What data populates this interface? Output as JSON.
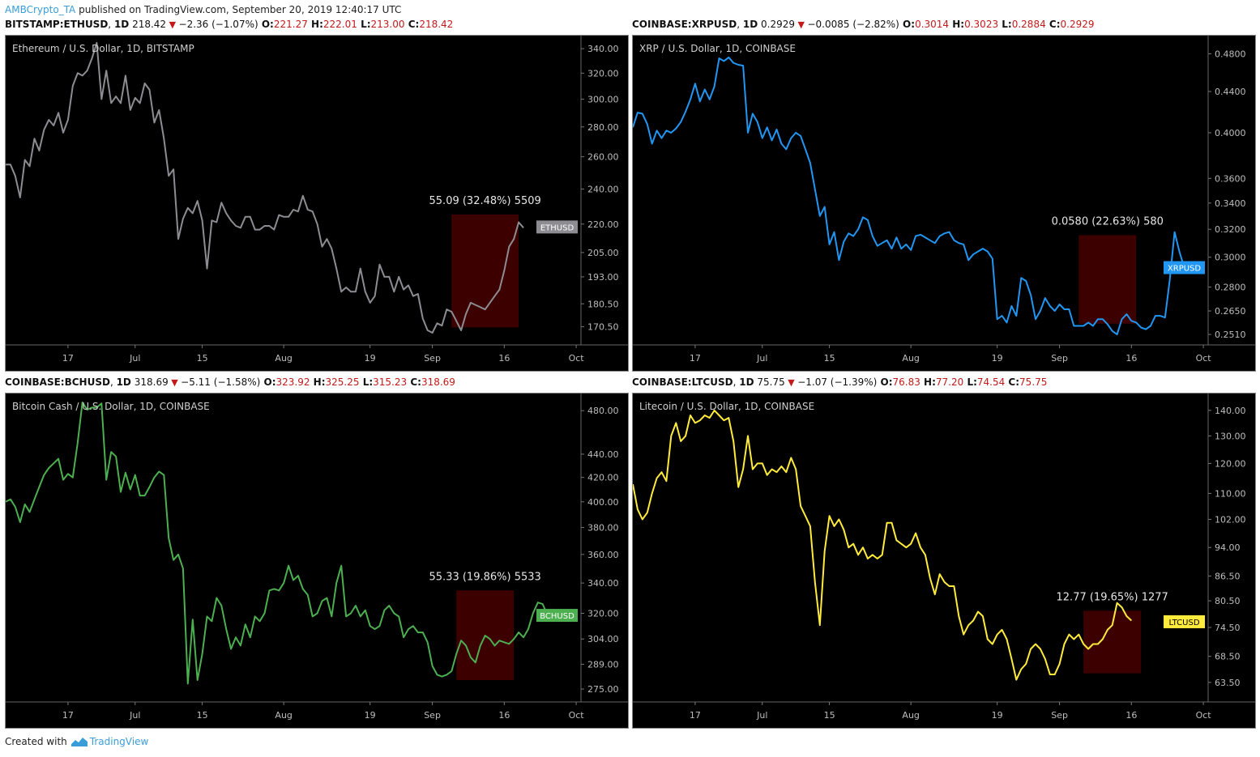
{
  "header": {
    "author": "AMBCrypto_TA",
    "published_text": "published on TradingView.com, September 20, 2019 12:40:17 UTC"
  },
  "footer": {
    "created_with": "Created with",
    "brand": "TradingView"
  },
  "colors": {
    "box": "#3d0000",
    "panel_bg": "#000000",
    "red": "#c21a1a"
  },
  "panels": [
    {
      "symbol": "BITSTAMP:ETHUSD",
      "interval": "1D",
      "last": "218.42",
      "change": "−2.36 (−1.07%)",
      "ohlc": {
        "o": "221.27",
        "h": "222.01",
        "l": "213.00",
        "c": "218.42"
      },
      "title": "Ethereum / U.S. Dollar, 1D, BITSTAMP",
      "ticker": "ETHUSD",
      "measure_label": "55.09 (32.48%) 5509"
    },
    {
      "symbol": "COINBASE:XRPUSD",
      "interval": "1D",
      "last": "0.2929",
      "change": "−0.0085 (−2.82%)",
      "ohlc": {
        "o": "0.3014",
        "h": "0.3023",
        "l": "0.2884",
        "c": "0.2929"
      },
      "title": "XRP / U.S. Dollar, 1D, COINBASE",
      "ticker": "XRPUSD",
      "measure_label": "0.0580 (22.63%) 580"
    },
    {
      "symbol": "COINBASE:BCHUSD",
      "interval": "1D",
      "last": "318.69",
      "change": "−5.11 (−1.58%)",
      "ohlc": {
        "o": "323.92",
        "h": "325.25",
        "l": "315.23",
        "c": "318.69"
      },
      "title": "Bitcoin Cash / U.S. Dollar, 1D, COINBASE",
      "ticker": "BCHUSD",
      "measure_label": "55.33 (19.86%) 5533"
    },
    {
      "symbol": "COINBASE:LTCUSD",
      "interval": "1D",
      "last": "75.75",
      "change": "−1.07 (−1.39%)",
      "ohlc": {
        "o": "76.83",
        "h": "77.20",
        "l": "74.54",
        "c": "75.75"
      },
      "title": "Litecoin / U.S. Dollar, 1D, COINBASE",
      "ticker": "LTCUSD",
      "measure_label": "12.77 (19.65%) 1277"
    }
  ],
  "chart_data": [
    {
      "type": "line",
      "color": "#8c8c92",
      "ticker": "ETHUSD",
      "last_value": 218.42,
      "x_ticks": [
        {
          "label": "17",
          "day": 13
        },
        {
          "label": "Jul",
          "day": 27
        },
        {
          "label": "15",
          "day": 41
        },
        {
          "label": "Aug",
          "day": 58
        },
        {
          "label": "19",
          "day": 76
        },
        {
          "label": "Sep",
          "day": 89
        },
        {
          "label": "16",
          "day": 104
        },
        {
          "label": "Oct",
          "day": 119
        }
      ],
      "y_ticks": [
        {
          "label": "340.00",
          "value": 340
        },
        {
          "label": "320.00",
          "value": 320
        },
        {
          "label": "300.00",
          "value": 300
        },
        {
          "label": "280.00",
          "value": 280
        },
        {
          "label": "260.00",
          "value": 260
        },
        {
          "label": "240.00",
          "value": 240
        },
        {
          "label": "220.00",
          "value": 220
        },
        {
          "label": "205.00",
          "value": 205
        },
        {
          "label": "193.00",
          "value": 193
        },
        {
          "label": "180.50",
          "value": 180.5
        },
        {
          "label": "170.50",
          "value": 170.5
        }
      ],
      "ylim": [
        163,
        347
      ],
      "xlim": [
        0,
        120
      ],
      "log_scale": true,
      "measure_box": {
        "x_start": 93,
        "x_end": 107,
        "y_low": 170.2,
        "y_high": 225.3
      },
      "values": [
        255,
        255,
        248,
        235,
        258,
        254,
        272,
        264,
        278,
        285,
        281,
        290,
        276,
        285,
        310,
        320,
        318,
        322,
        332,
        345,
        300,
        322,
        297,
        302,
        297,
        318,
        292,
        301,
        297,
        312,
        307,
        283,
        292,
        272,
        248,
        252,
        212,
        223,
        229,
        226,
        233,
        222,
        197,
        222,
        221,
        232,
        226,
        222,
        219,
        218,
        224,
        224,
        217,
        217,
        219,
        219,
        217,
        225,
        224,
        224,
        228,
        227,
        236,
        228,
        227,
        220,
        208,
        212,
        207,
        197,
        186,
        188,
        186,
        186,
        197,
        186,
        181,
        184,
        199,
        193,
        193,
        186,
        193,
        187,
        189,
        184,
        185,
        174,
        169,
        168,
        172,
        171,
        178,
        177,
        173,
        169,
        176,
        181,
        180,
        179,
        178,
        181,
        184,
        187,
        196,
        208,
        212,
        221,
        218
      ]
    },
    {
      "type": "line",
      "color": "#2196f3",
      "ticker": "XRPUSD",
      "last_value": 0.2929,
      "x_ticks": [
        {
          "label": "17",
          "day": 13
        },
        {
          "label": "Jul",
          "day": 27
        },
        {
          "label": "15",
          "day": 41
        },
        {
          "label": "Aug",
          "day": 58
        },
        {
          "label": "19",
          "day": 76
        },
        {
          "label": "Sep",
          "day": 89
        },
        {
          "label": "16",
          "day": 104
        },
        {
          "label": "Oct",
          "day": 119
        }
      ],
      "y_ticks": [
        {
          "label": "0.4800",
          "value": 0.48
        },
        {
          "label": "0.4400",
          "value": 0.44
        },
        {
          "label": "0.4000",
          "value": 0.4
        },
        {
          "label": "0.3600",
          "value": 0.36
        },
        {
          "label": "0.3400",
          "value": 0.34
        },
        {
          "label": "0.3200",
          "value": 0.32
        },
        {
          "label": "0.3000",
          "value": 0.3
        },
        {
          "label": "0.2800",
          "value": 0.28
        },
        {
          "label": "0.2650",
          "value": 0.265
        },
        {
          "label": "0.2510",
          "value": 0.251
        }
      ],
      "ylim": [
        0.245,
        0.495
      ],
      "xlim": [
        0,
        120
      ],
      "log_scale": true,
      "measure_box": {
        "x_start": 93,
        "x_end": 105,
        "y_low": 0.2573,
        "y_high": 0.3157
      },
      "values": [
        0.405,
        0.419,
        0.418,
        0.408,
        0.39,
        0.402,
        0.395,
        0.402,
        0.4,
        0.404,
        0.41,
        0.42,
        0.432,
        0.448,
        0.43,
        0.442,
        0.432,
        0.445,
        0.475,
        0.472,
        0.476,
        0.47,
        0.468,
        0.467,
        0.4,
        0.418,
        0.41,
        0.395,
        0.405,
        0.393,
        0.403,
        0.39,
        0.385,
        0.395,
        0.4,
        0.397,
        0.385,
        0.373,
        0.351,
        0.33,
        0.337,
        0.309,
        0.318,
        0.298,
        0.311,
        0.317,
        0.315,
        0.32,
        0.329,
        0.327,
        0.315,
        0.308,
        0.31,
        0.312,
        0.306,
        0.314,
        0.306,
        0.309,
        0.305,
        0.315,
        0.316,
        0.314,
        0.312,
        0.31,
        0.315,
        0.317,
        0.318,
        0.312,
        0.31,
        0.309,
        0.298,
        0.302,
        0.304,
        0.306,
        0.304,
        0.299,
        0.26,
        0.262,
        0.258,
        0.268,
        0.262,
        0.286,
        0.284,
        0.275,
        0.26,
        0.265,
        0.273,
        0.268,
        0.265,
        0.269,
        0.266,
        0.266,
        0.256,
        0.256,
        0.256,
        0.258,
        0.256,
        0.26,
        0.26,
        0.257,
        0.253,
        0.251,
        0.26,
        0.263,
        0.259,
        0.258,
        0.255,
        0.254,
        0.256,
        0.262,
        0.262,
        0.261,
        0.285,
        0.318,
        0.304,
        0.293
      ]
    },
    {
      "type": "line",
      "color": "#4caf50",
      "ticker": "BCHUSD",
      "last_value": 318.69,
      "x_ticks": [
        {
          "label": "17",
          "day": 13
        },
        {
          "label": "Jul",
          "day": 27
        },
        {
          "label": "15",
          "day": 41
        },
        {
          "label": "Aug",
          "day": 58
        },
        {
          "label": "19",
          "day": 76
        },
        {
          "label": "Sep",
          "day": 89
        },
        {
          "label": "16",
          "day": 104
        },
        {
          "label": "Oct",
          "day": 119
        }
      ],
      "y_ticks": [
        {
          "label": "480.00",
          "value": 480
        },
        {
          "label": "440.00",
          "value": 440
        },
        {
          "label": "420.00",
          "value": 420
        },
        {
          "label": "400.00",
          "value": 400
        },
        {
          "label": "380.00",
          "value": 380
        },
        {
          "label": "360.00",
          "value": 360
        },
        {
          "label": "340.00",
          "value": 340
        },
        {
          "label": "320.00",
          "value": 320
        },
        {
          "label": "304.00",
          "value": 304
        },
        {
          "label": "289.00",
          "value": 289
        },
        {
          "label": "275.00",
          "value": 275
        }
      ],
      "ylim": [
        268,
        492
      ],
      "xlim": [
        0,
        120
      ],
      "log_scale": true,
      "measure_box": {
        "x_start": 94,
        "x_end": 106,
        "y_low": 280,
        "y_high": 335
      },
      "values": [
        400,
        402,
        396,
        384,
        398,
        392,
        402,
        412,
        422,
        428,
        432,
        436,
        418,
        423,
        420,
        450,
        488,
        481,
        483,
        483,
        487,
        418,
        442,
        438,
        408,
        424,
        410,
        422,
        405,
        405,
        412,
        420,
        425,
        422,
        372,
        356,
        360,
        350,
        278,
        316,
        280,
        295,
        318,
        315,
        330,
        325,
        310,
        298,
        305,
        300,
        313,
        305,
        318,
        315,
        320,
        335,
        336,
        335,
        340,
        352,
        342,
        345,
        336,
        332,
        318,
        320,
        328,
        330,
        318,
        340,
        352,
        318,
        320,
        325,
        318,
        322,
        312,
        310,
        312,
        322,
        325,
        320,
        318,
        305,
        310,
        312,
        308,
        308,
        302,
        288,
        283,
        282,
        283,
        285,
        295,
        303,
        300,
        293,
        290,
        300,
        306,
        304,
        300,
        303,
        302,
        301,
        304,
        308,
        305,
        310,
        320,
        327,
        326,
        319
      ]
    },
    {
      "type": "line",
      "color": "#ffeb3b",
      "ticker": "LTCUSD",
      "last_value": 75.75,
      "x_ticks": [
        {
          "label": "17",
          "day": 13
        },
        {
          "label": "Jul",
          "day": 27
        },
        {
          "label": "15",
          "day": 41
        },
        {
          "label": "Aug",
          "day": 58
        },
        {
          "label": "19",
          "day": 76
        },
        {
          "label": "Sep",
          "day": 89
        },
        {
          "label": "16",
          "day": 104
        },
        {
          "label": "Oct",
          "day": 119
        }
      ],
      "y_ticks": [
        {
          "label": "140.00",
          "value": 140
        },
        {
          "label": "130.00",
          "value": 130
        },
        {
          "label": "120.00",
          "value": 120
        },
        {
          "label": "110.00",
          "value": 110
        },
        {
          "label": "102.00",
          "value": 102
        },
        {
          "label": "94.00",
          "value": 94
        },
        {
          "label": "86.50",
          "value": 86.5
        },
        {
          "label": "80.50",
          "value": 80.5
        },
        {
          "label": "74.50",
          "value": 74.5
        },
        {
          "label": "68.50",
          "value": 68.5
        },
        {
          "label": "63.50",
          "value": 63.5
        }
      ],
      "ylim": [
        60,
        145
      ],
      "xlim": [
        0,
        120
      ],
      "log_scale": true,
      "measure_box": {
        "x_start": 94,
        "x_end": 106,
        "y_low": 65.2,
        "y_high": 78.2
      },
      "values": [
        113,
        105,
        102,
        104,
        110,
        115,
        117,
        114,
        130,
        135,
        128,
        130,
        138,
        135,
        136,
        138,
        137,
        140,
        138,
        136,
        137,
        128,
        112,
        118,
        130,
        118,
        120,
        120,
        116,
        118,
        117,
        119,
        117,
        122,
        118,
        106,
        103,
        100,
        85,
        75,
        93,
        103,
        100,
        102,
        99,
        94,
        95,
        92,
        94,
        91,
        92,
        91,
        92,
        101,
        101,
        96,
        95,
        94,
        95,
        98,
        94,
        92,
        86,
        82,
        87,
        85,
        84,
        84,
        77,
        73,
        75,
        76,
        78,
        77,
        72,
        71,
        73,
        74,
        72,
        68,
        64,
        66,
        67,
        70,
        71,
        70,
        68,
        65,
        65,
        67,
        71,
        73,
        72,
        73,
        71,
        70,
        71,
        71,
        72,
        74,
        75,
        80,
        79,
        77,
        76
      ]
    }
  ]
}
